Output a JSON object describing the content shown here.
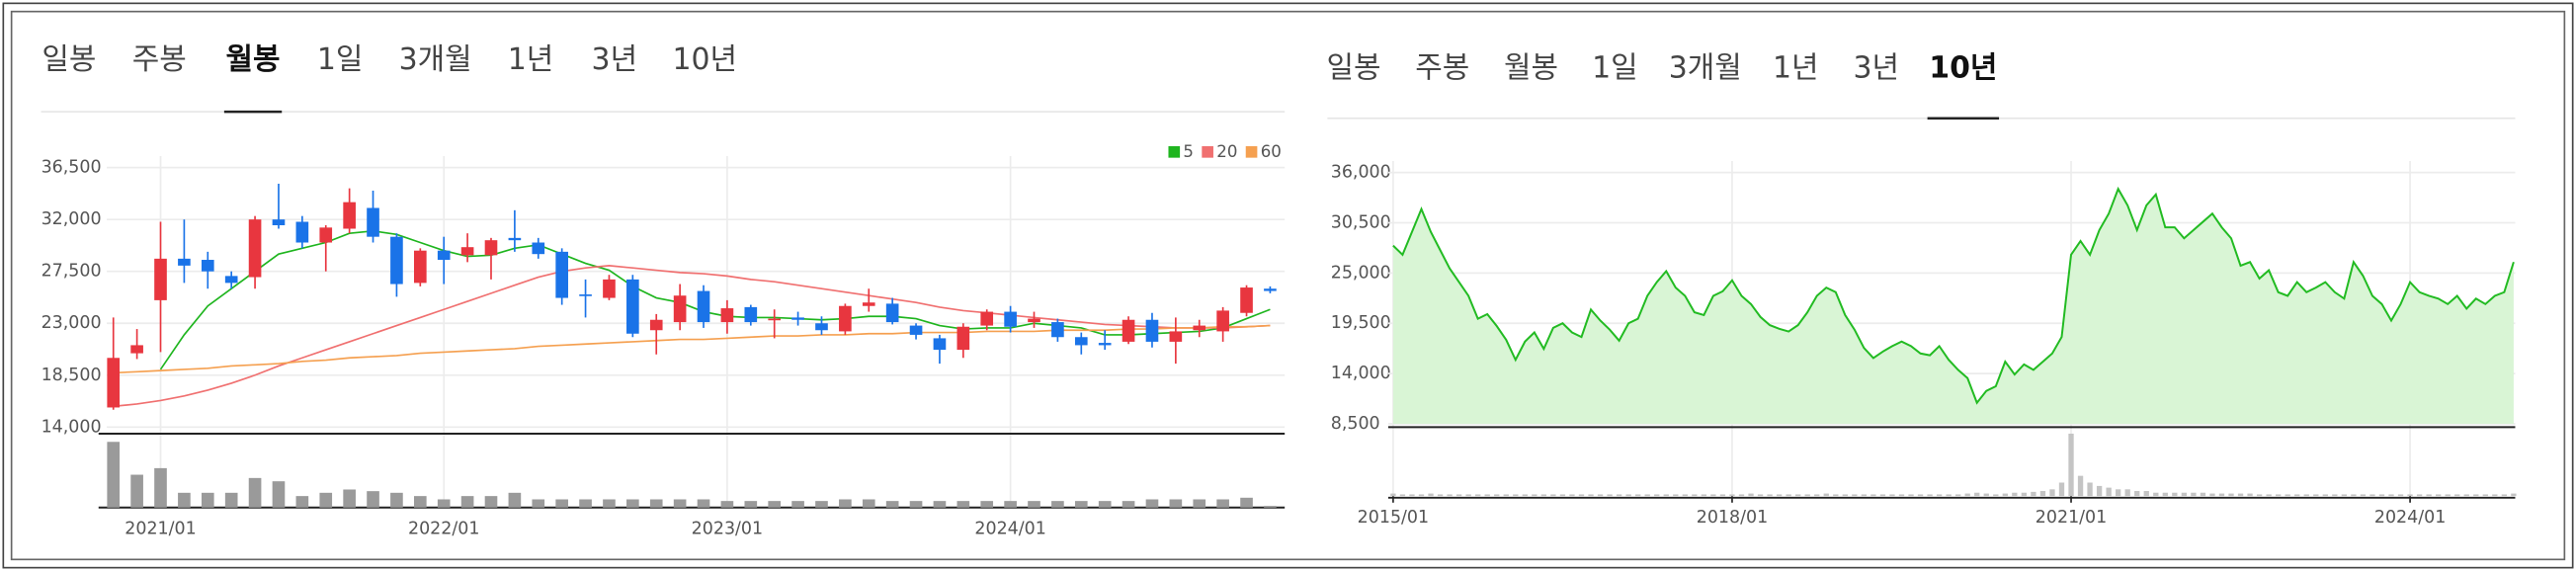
{
  "tabs": [
    [
      {
        "label": "일봉",
        "selected": false
      },
      {
        "label": "주봉",
        "selected": false
      },
      {
        "label": "월봉",
        "selected": true
      },
      {
        "label": "1일",
        "selected": false
      },
      {
        "label": "3개월",
        "selected": false
      },
      {
        "label": "1년",
        "selected": false
      },
      {
        "label": "3년",
        "selected": false
      },
      {
        "label": "10년",
        "selected": false
      }
    ],
    [
      {
        "label": "일봉",
        "selected": false
      },
      {
        "label": "주봉",
        "selected": false
      },
      {
        "label": "월봉",
        "selected": false
      },
      {
        "label": "1일",
        "selected": false
      },
      {
        "label": "3개월",
        "selected": false
      },
      {
        "label": "1년",
        "selected": false
      },
      {
        "label": "3년",
        "selected": false
      },
      {
        "label": "10년",
        "selected": true
      }
    ]
  ],
  "chart_data": [
    {
      "type": "candlestick",
      "categories": [
        null,
        null,
        "2021/01",
        null,
        null,
        null,
        null,
        null,
        null,
        null,
        null,
        null,
        null,
        null,
        "2022/01",
        null,
        null,
        null,
        null,
        null,
        null,
        null,
        null,
        null,
        null,
        null,
        "2023/01",
        null,
        null,
        null,
        null,
        null,
        null,
        null,
        null,
        null,
        null,
        null,
        "2024/01",
        null,
        null,
        null,
        null,
        null,
        null,
        null,
        null,
        null,
        null,
        null
      ],
      "open": [
        15700,
        20400,
        25000,
        28600,
        28500,
        27100,
        27000,
        32000,
        31800,
        30000,
        31200,
        33000,
        30500,
        26500,
        29300,
        28900,
        28900,
        30400,
        30000,
        29200,
        25500,
        25200,
        26800,
        22400,
        23100,
        25800,
        23100,
        24400,
        23300,
        23500,
        23000,
        22300,
        24500,
        24700,
        22800,
        21700,
        20700,
        22800,
        24000,
        23100,
        23100,
        21800,
        21300,
        21400,
        23300,
        21400,
        22400,
        22300,
        23900,
        26000
      ],
      "high": [
        23500,
        22500,
        31800,
        32000,
        29200,
        27500,
        32300,
        35100,
        32300,
        31500,
        34700,
        34500,
        30800,
        29500,
        30500,
        30800,
        30400,
        32800,
        30400,
        29500,
        26800,
        27200,
        27200,
        23800,
        26400,
        26300,
        25000,
        24600,
        24200,
        24000,
        23600,
        24700,
        26000,
        25200,
        23000,
        22000,
        23000,
        24200,
        24500,
        24000,
        23400,
        22200,
        22400,
        23600,
        23900,
        23500,
        23300,
        24400,
        26300,
        26200
      ],
      "low": [
        15500,
        19900,
        20500,
        26500,
        26000,
        26000,
        26000,
        31200,
        29500,
        27500,
        30800,
        30000,
        25300,
        26200,
        26400,
        28300,
        26800,
        29200,
        28600,
        24600,
        23500,
        25000,
        21800,
        20300,
        22400,
        22600,
        22100,
        22800,
        21700,
        22800,
        22000,
        22000,
        24000,
        22900,
        21600,
        19500,
        20000,
        22400,
        22200,
        22600,
        21400,
        20300,
        20700,
        21200,
        20900,
        19500,
        21800,
        21400,
        23600,
        25600
      ],
      "close": [
        20000,
        21100,
        28600,
        28000,
        27500,
        26500,
        32000,
        31500,
        30000,
        31300,
        33500,
        30500,
        26400,
        29300,
        28500,
        29600,
        30200,
        30200,
        29000,
        25200,
        25400,
        26800,
        22100,
        23300,
        25400,
        23100,
        24300,
        23100,
        23400,
        23300,
        22400,
        24500,
        24800,
        23100,
        22000,
        20700,
        22700,
        24000,
        22700,
        23400,
        21800,
        21100,
        21100,
        23300,
        21400,
        22300,
        22800,
        24100,
        26100,
        25800
      ],
      "up_color": "#e8363f",
      "down_color": "#1a73e8",
      "series": [
        {
          "name": "5",
          "color": "#1fb51f",
          "values": [
            null,
            null,
            19000,
            22000,
            24500,
            26000,
            27500,
            29000,
            29500,
            30000,
            30800,
            31000,
            30700,
            30000,
            29300,
            28800,
            28900,
            29500,
            29800,
            29000,
            28200,
            27600,
            26200,
            25200,
            24800,
            24000,
            23600,
            23500,
            23500,
            23400,
            23300,
            23400,
            23600,
            23600,
            23400,
            22800,
            22500,
            22600,
            22600,
            23000,
            22800,
            22600,
            22000,
            22000,
            22100,
            22200,
            22300,
            22600,
            23400,
            24200
          ]
        },
        {
          "name": "20",
          "color": "#f07070",
          "values": [
            15800,
            16000,
            16300,
            16700,
            17200,
            17800,
            18500,
            19300,
            20000,
            20700,
            21400,
            22100,
            22800,
            23500,
            24200,
            24900,
            25600,
            26300,
            27000,
            27500,
            27800,
            28000,
            27800,
            27600,
            27400,
            27300,
            27100,
            26800,
            26600,
            26300,
            26000,
            25700,
            25400,
            25100,
            24800,
            24400,
            24100,
            23900,
            23700,
            23500,
            23300,
            23100,
            22900,
            22800,
            22700,
            22600,
            22600,
            22600,
            22700,
            22800
          ]
        },
        {
          "name": "60",
          "color": "#f5a050",
          "values": [
            18700,
            18800,
            18900,
            19000,
            19100,
            19300,
            19400,
            19500,
            19700,
            19800,
            20000,
            20100,
            20200,
            20400,
            20500,
            20600,
            20700,
            20800,
            21000,
            21100,
            21200,
            21300,
            21400,
            21500,
            21600,
            21600,
            21700,
            21800,
            21900,
            21900,
            22000,
            22000,
            22100,
            22100,
            22200,
            22200,
            22200,
            22300,
            22300,
            22300,
            22400,
            22400,
            22400,
            22500,
            22500,
            22600,
            22600,
            22700,
            22700,
            22800
          ]
        }
      ],
      "volume": [
        40,
        20,
        24,
        9,
        9,
        9,
        18,
        16,
        7,
        9,
        11,
        10,
        9,
        7,
        5,
        7,
        7,
        9,
        5,
        5,
        5,
        5,
        5,
        5,
        5,
        5,
        4,
        4,
        4,
        4,
        4,
        5,
        5,
        4,
        4,
        4,
        4,
        4,
        4,
        4,
        4,
        4,
        4,
        4,
        5,
        5,
        5,
        5,
        6,
        1
      ],
      "volume_color": "#9a9a9a",
      "ylim": [
        14000,
        36500
      ],
      "yticks": [
        {
          "value": 14000,
          "label": "14,000"
        },
        {
          "value": 18500,
          "label": "18,500"
        },
        {
          "value": 23000,
          "label": "23,000"
        },
        {
          "value": 27500,
          "label": "27,500"
        },
        {
          "value": 32000,
          "label": "32,000"
        },
        {
          "value": 36500,
          "label": "36,500"
        }
      ],
      "grid": true,
      "legend": "top-right"
    },
    {
      "type": "area",
      "x": [
        "2015/01",
        "2015/02",
        "2015/03",
        "2015/04",
        "2015/05",
        "2015/06",
        "2015/07",
        "2015/08",
        "2015/09",
        "2015/10",
        "2015/11",
        "2015/12",
        "2016/01",
        "2016/02",
        "2016/03",
        "2016/04",
        "2016/05",
        "2016/06",
        "2016/07",
        "2016/08",
        "2016/09",
        "2016/10",
        "2016/11",
        "2016/12",
        "2017/01",
        "2017/02",
        "2017/03",
        "2017/04",
        "2017/05",
        "2017/06",
        "2017/07",
        "2017/08",
        "2017/09",
        "2017/10",
        "2017/11",
        "2017/12",
        "2018/01",
        "2018/02",
        "2018/03",
        "2018/04",
        "2018/05",
        "2018/06",
        "2018/07",
        "2018/08",
        "2018/09",
        "2018/10",
        "2018/11",
        "2018/12",
        "2019/01",
        "2019/02",
        "2019/03",
        "2019/04",
        "2019/05",
        "2019/06",
        "2019/07",
        "2019/08",
        "2019/09",
        "2019/10",
        "2019/11",
        "2019/12",
        "2020/01",
        "2020/02",
        "2020/03",
        "2020/04",
        "2020/05",
        "2020/06",
        "2020/07",
        "2020/08",
        "2020/09",
        "2020/10",
        "2020/11",
        "2020/12",
        "2021/01",
        "2021/02",
        "2021/03",
        "2021/04",
        "2021/05",
        "2021/06",
        "2021/07",
        "2021/08",
        "2021/09",
        "2021/10",
        "2021/11",
        "2021/12",
        "2022/01",
        "2022/02",
        "2022/03",
        "2022/04",
        "2022/05",
        "2022/06",
        "2022/07",
        "2022/08",
        "2022/09",
        "2022/10",
        "2022/11",
        "2022/12",
        "2023/01",
        "2023/02",
        "2023/03",
        "2023/04",
        "2023/05",
        "2023/06",
        "2023/07",
        "2023/08",
        "2023/09",
        "2023/10",
        "2023/11",
        "2023/12",
        "2024/01",
        "2024/02",
        "2024/03",
        "2024/04",
        "2024/05",
        "2024/06",
        "2024/07",
        "2024/08",
        "2024/09",
        "2024/10",
        "2024/11",
        "2024/12"
      ],
      "values": [
        28000,
        27000,
        29500,
        32000,
        29500,
        27500,
        25500,
        24000,
        22500,
        20000,
        20500,
        19200,
        17700,
        15500,
        17500,
        18500,
        16700,
        19000,
        19500,
        18500,
        18000,
        21000,
        19800,
        18800,
        17600,
        19500,
        20000,
        22500,
        24000,
        25200,
        23400,
        22500,
        20700,
        20400,
        22500,
        23000,
        24200,
        22500,
        21600,
        20200,
        19300,
        18900,
        18600,
        19300,
        20700,
        22500,
        23400,
        22900,
        20400,
        18800,
        16800,
        15700,
        16400,
        17000,
        17500,
        17000,
        16200,
        16000,
        17000,
        15500,
        14400,
        13500,
        10800,
        12100,
        12600,
        15300,
        13900,
        15000,
        14400,
        15300,
        16200,
        18000,
        27000,
        28500,
        27000,
        29700,
        31500,
        34200,
        32400,
        29700,
        32400,
        33600,
        30000,
        30000,
        28800,
        29700,
        30600,
        31500,
        30000,
        28800,
        25800,
        26200,
        24400,
        25300,
        22900,
        22500,
        24000,
        22900,
        23400,
        24000,
        22900,
        22200,
        26200,
        24700,
        22500,
        21600,
        19800,
        21600,
        24000,
        22900,
        22500,
        22200,
        21600,
        22500,
        21100,
        22200,
        21600,
        22500,
        22900,
        26200
      ],
      "color": "#22bb22",
      "fill": "#d9f5d5",
      "volume": [
        1.5,
        1,
        1,
        1,
        1.5,
        1,
        1,
        1,
        1,
        1,
        1,
        1,
        1,
        1,
        1,
        1,
        1,
        1,
        1,
        1,
        1,
        1,
        1,
        1,
        1,
        1,
        1,
        1,
        1,
        1,
        1,
        1,
        1,
        1,
        1,
        1,
        1,
        1,
        1.5,
        1,
        1,
        1,
        1,
        1,
        1,
        1,
        1.5,
        1,
        1,
        1,
        1,
        1,
        1,
        1,
        1,
        1,
        1,
        1,
        1,
        1,
        1,
        1.5,
        2,
        1.5,
        1,
        1.5,
        2,
        2,
        2.5,
        3,
        4,
        8,
        37,
        12,
        8,
        6,
        5,
        4,
        4,
        3,
        3,
        2,
        2,
        2,
        2,
        2,
        2,
        1.5,
        1.5,
        1.5,
        1.5,
        1.5,
        1,
        1,
        1,
        1,
        1,
        1,
        1,
        1,
        1,
        1,
        1,
        1,
        1,
        1,
        1,
        1,
        1,
        1,
        1,
        1,
        1,
        1,
        1,
        1,
        1,
        1,
        1,
        1.5
      ],
      "volume_color": "#c4c4c4",
      "ylim": [
        8500,
        36000
      ],
      "yticks": [
        {
          "value": 8500,
          "label": "8,500"
        },
        {
          "value": 14000,
          "label": "14,000"
        },
        {
          "value": 19500,
          "label": "19,500"
        },
        {
          "value": 25000,
          "label": "25,000"
        },
        {
          "value": 30500,
          "label": "30,500"
        },
        {
          "value": 36000,
          "label": "36,000"
        }
      ],
      "xticks": [
        "2015/01",
        "2018/01",
        "2021/01",
        "2024/01"
      ],
      "grid": true
    }
  ]
}
